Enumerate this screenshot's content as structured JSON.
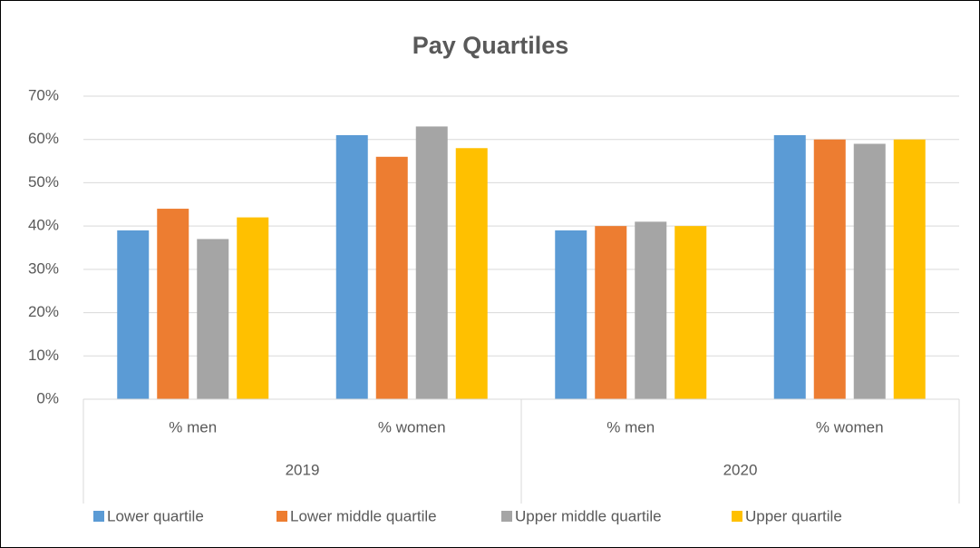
{
  "chart_data": {
    "type": "bar",
    "title": "Pay Quartiles",
    "groups": [
      "2019",
      "2020"
    ],
    "categories": [
      "% men",
      "% women",
      "% men",
      "% women"
    ],
    "series": [
      {
        "name": "Lower quartile",
        "color": "#5b9bd5",
        "values": [
          39,
          61,
          39,
          61
        ]
      },
      {
        "name": "Lower middle quartile",
        "color": "#ed7d31",
        "values": [
          44,
          56,
          40,
          60
        ]
      },
      {
        "name": "Upper middle quartile",
        "color": "#a5a5a5",
        "values": [
          37,
          63,
          41,
          59
        ]
      },
      {
        "name": "Upper quartile",
        "color": "#ffc000",
        "values": [
          42,
          58,
          40,
          60
        ]
      }
    ],
    "ylim": [
      0,
      70
    ],
    "yticks": [
      {
        "value": 0,
        "label": "0%"
      },
      {
        "value": 10,
        "label": "10%"
      },
      {
        "value": 20,
        "label": "20%"
      },
      {
        "value": 30,
        "label": "30%"
      },
      {
        "value": 40,
        "label": "40%"
      },
      {
        "value": 50,
        "label": "50%"
      },
      {
        "value": 60,
        "label": "60%"
      },
      {
        "value": 70,
        "label": "70%"
      }
    ],
    "grid": true,
    "legend": "bottom"
  }
}
